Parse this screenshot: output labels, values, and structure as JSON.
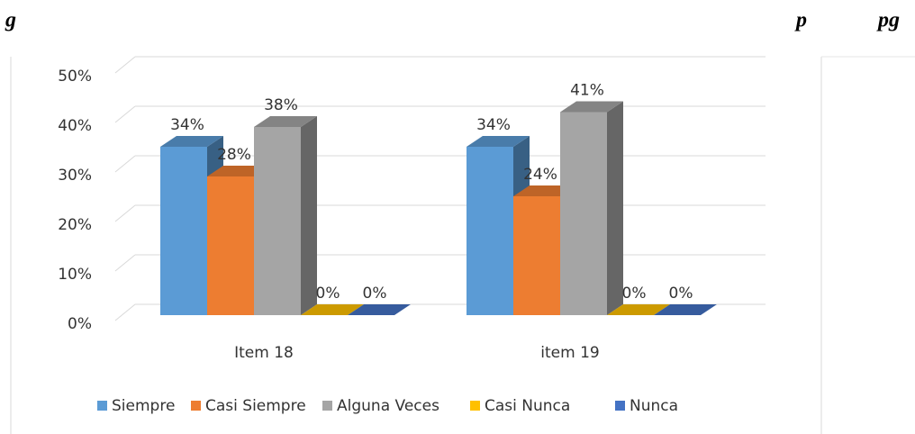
{
  "header_fragments": [
    "g",
    "p",
    "pg"
  ],
  "chart_data": {
    "type": "bar3d",
    "categories": [
      "Item 18",
      "item 19"
    ],
    "series": [
      {
        "name": "Siempre",
        "color": "#5b9bd5",
        "values": [
          34,
          34
        ],
        "value_labels": [
          "34%",
          "34%"
        ]
      },
      {
        "name": "Casi Siempre",
        "color": "#ed7d31",
        "values": [
          28,
          24
        ],
        "value_labels": [
          "28%",
          "24%"
        ]
      },
      {
        "name": "Alguna Veces",
        "color": "#a5a5a5",
        "values": [
          38,
          41
        ],
        "value_labels": [
          "38%",
          "41%"
        ]
      },
      {
        "name": "Casi Nunca",
        "color": "#ffc000",
        "values": [
          0,
          0
        ],
        "value_labels": [
          "0%",
          "0%"
        ]
      },
      {
        "name": "Nunca",
        "color": "#4472c4",
        "values": [
          0,
          0
        ],
        "value_labels": [
          "0%",
          "0%"
        ]
      }
    ],
    "ylim": [
      0,
      50
    ],
    "yticks": [
      {
        "value": 0,
        "label": "0%"
      },
      {
        "value": 10,
        "label": "10%"
      },
      {
        "value": 20,
        "label": "20%"
      },
      {
        "value": 30,
        "label": "30%"
      },
      {
        "value": 40,
        "label": "40%"
      },
      {
        "value": 50,
        "label": "50%"
      }
    ],
    "grid": true,
    "legend": "bottom"
  }
}
